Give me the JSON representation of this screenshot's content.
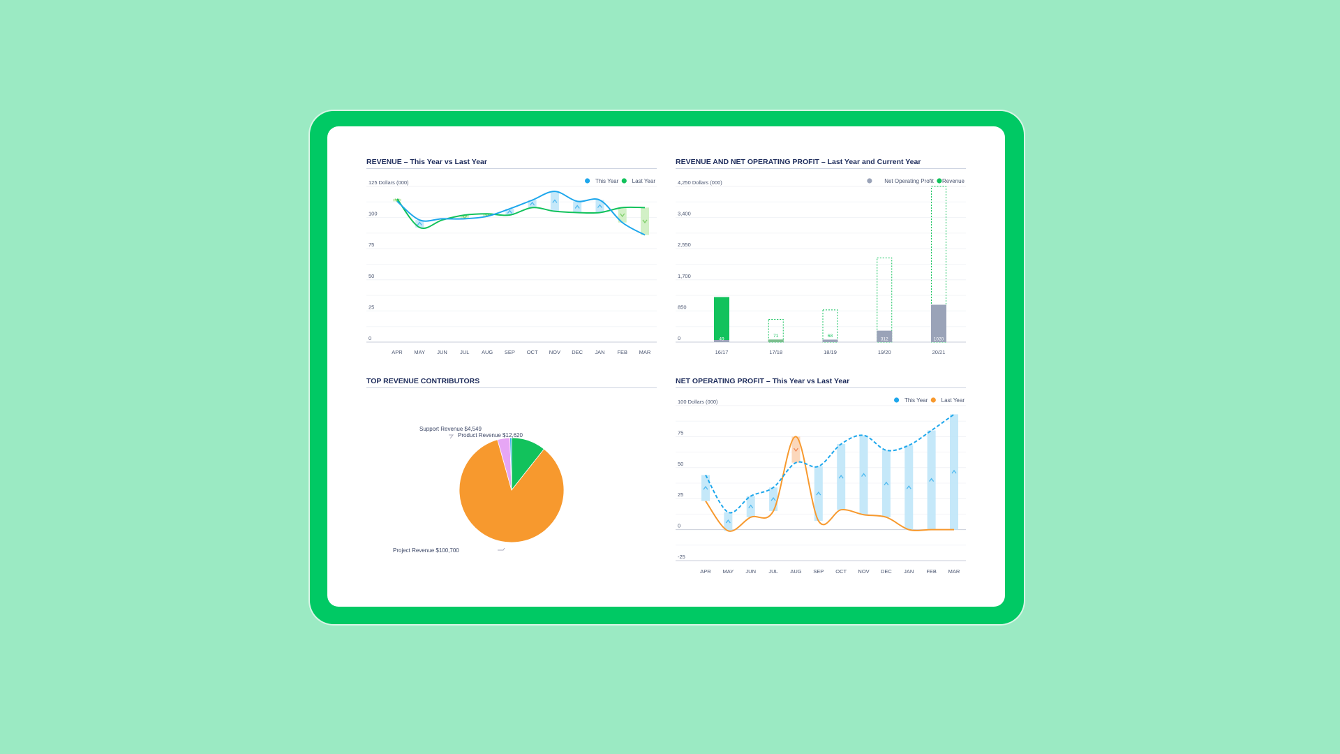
{
  "colors": {
    "background": "#9beac3",
    "frame": "#00c964",
    "this_year": "#1ea7ec",
    "last_year_green": "#12c25c",
    "last_year_orange": "#f7992e",
    "nop": "#9aa3b8",
    "title": "#1f2d5c"
  },
  "chart_data": [
    {
      "id": "revenue",
      "type": "line",
      "title": "REVENUE – This Year vs Last Year",
      "ylabel": "Dollars (000)",
      "y_ticks": [
        "125",
        "100",
        "75",
        "50",
        "25",
        "0"
      ],
      "top_tick_label": "125 Dollars (000)",
      "ylim": [
        0,
        125
      ],
      "categories": [
        "APR",
        "MAY",
        "JUN",
        "JUL",
        "AUG",
        "SEP",
        "OCT",
        "NOV",
        "DEC",
        "JAN",
        "FEB",
        "MAR"
      ],
      "series": [
        {
          "name": "This Year",
          "color": "#1ea7ec",
          "values": [
            113,
            98,
            99,
            99,
            101,
            107,
            114,
            121,
            113,
            114,
            96,
            86
          ]
        },
        {
          "name": "Last Year",
          "color": "#12c25c",
          "values": [
            115,
            92,
            98,
            102,
            103,
            102,
            108,
            105,
            104,
            104,
            108,
            108
          ]
        }
      ],
      "legend": "top-right",
      "grid": true
    },
    {
      "id": "revenue_nop",
      "type": "bar",
      "title": "REVENUE AND NET OPERATING PROFIT – Last Year and Current Year",
      "ylabel": "Dollars (000)",
      "y_ticks": [
        "4,250",
        "3,400",
        "2,550",
        "1,700",
        "850",
        "0"
      ],
      "top_tick_label": "4,250 Dollars (000)",
      "ylim": [
        0,
        4250
      ],
      "categories": [
        "16/17",
        "17/18",
        "18/19",
        "19/20",
        "20/21"
      ],
      "series": [
        {
          "name": "Net Operating Profit",
          "color": "#9aa3b8",
          "values": [
            49,
            71,
            68,
            312,
            1020
          ],
          "labels": [
            "49",
            "71",
            "68",
            "312",
            "1020"
          ]
        },
        {
          "name": "Revenue",
          "color": "#12c25c",
          "values": [
            1230,
            620,
            880,
            2300,
            4250
          ]
        }
      ],
      "legend": "top-right",
      "grid": true
    },
    {
      "id": "contributors",
      "type": "pie",
      "title": "TOP REVENUE CONTRIBUTORS",
      "slices": [
        {
          "label": "Product Revenue $12,620",
          "value": 12620,
          "color": "#12c25c"
        },
        {
          "label": "Project Revenue $100,700",
          "value": 100700,
          "color": "#f7992e"
        },
        {
          "label": "Support Revenue $4,549",
          "value": 4549,
          "color": "#e6a6f5"
        },
        {
          "label": "",
          "value": 600,
          "color": "#1ea7ec"
        }
      ]
    },
    {
      "id": "nop",
      "type": "line",
      "title": "NET OPERATING PROFIT – This Year vs Last Year",
      "ylabel": "Dollars (000)",
      "y_ticks": [
        "100",
        "75",
        "50",
        "25",
        "0",
        "-25"
      ],
      "top_tick_label": "100 Dollars (000)",
      "ylim": [
        -25,
        100
      ],
      "categories": [
        "APR",
        "MAY",
        "JUN",
        "JUL",
        "AUG",
        "SEP",
        "OCT",
        "NOV",
        "DEC",
        "JAN",
        "FEB",
        "MAR"
      ],
      "series": [
        {
          "name": "This Year",
          "color": "#1ea7ec",
          "dashed": true,
          "values": [
            44,
            14,
            27,
            34,
            54,
            51,
            69,
            76,
            64,
            68,
            80,
            93
          ]
        },
        {
          "name": "Last Year",
          "color": "#f7992e",
          "values": [
            23,
            -1,
            10,
            15,
            75,
            7,
            16,
            12,
            10,
            0,
            0,
            0
          ]
        }
      ],
      "legend": "top-right",
      "grid": true
    }
  ]
}
